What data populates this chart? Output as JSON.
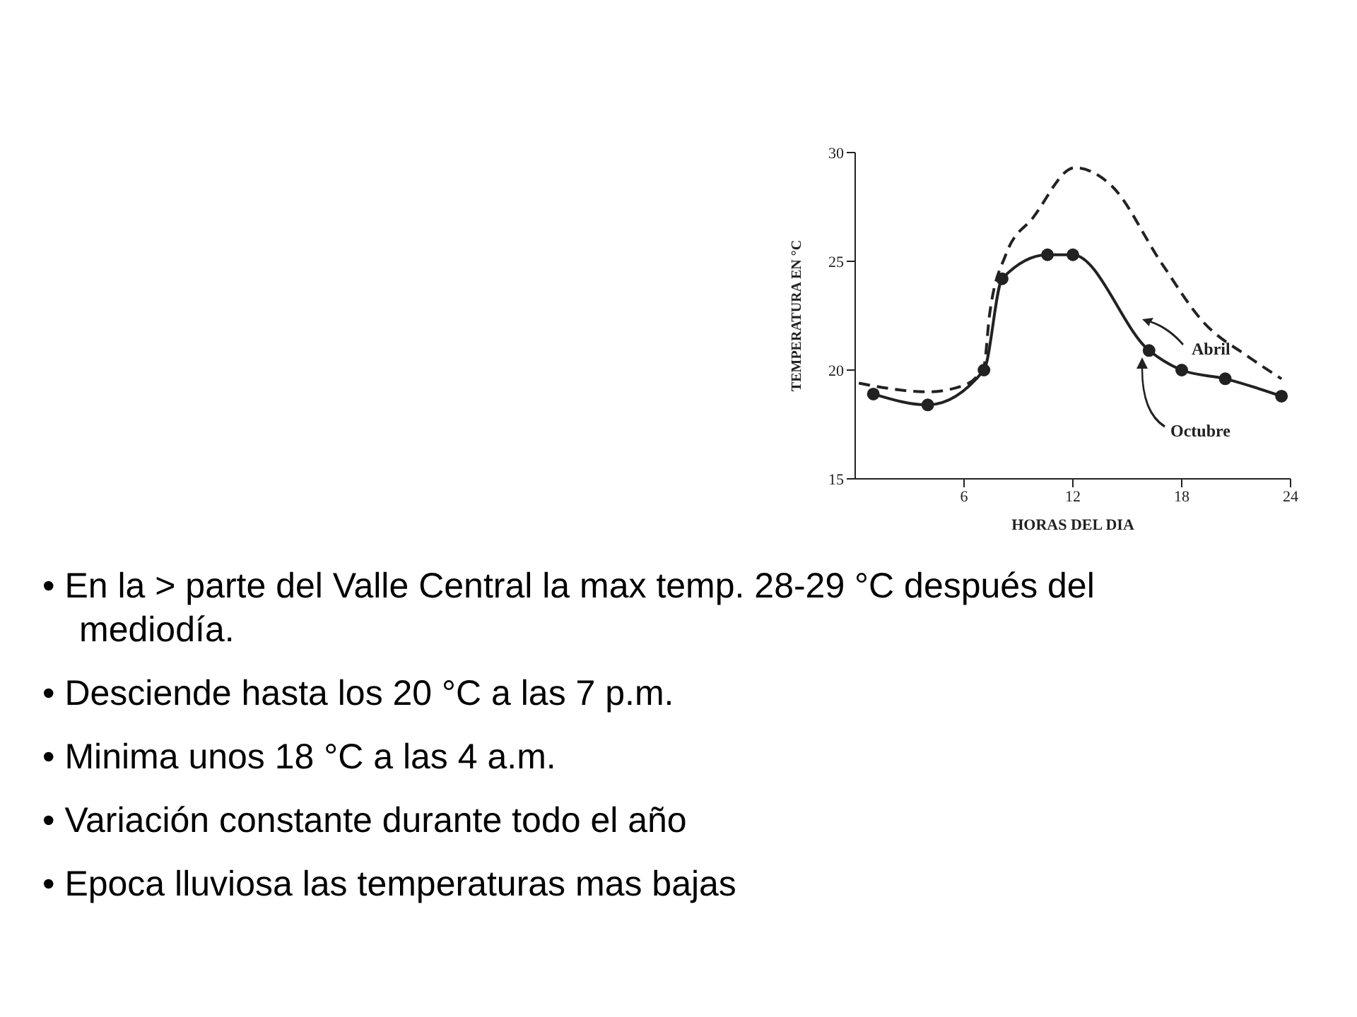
{
  "chart_data": {
    "type": "line",
    "xlabel": "HORAS DEL DIA",
    "ylabel": "TEMPERATURA EN °C",
    "xlim": [
      0,
      24
    ],
    "xticks": [
      6,
      12,
      18,
      24
    ],
    "ylim": [
      15,
      30
    ],
    "yticks": [
      15,
      20,
      25,
      30
    ],
    "grid": false,
    "legend": false,
    "series": [
      {
        "name": "Abril",
        "color": "#222222",
        "line_style": "dashed",
        "marker": "none",
        "x": [
          0.2,
          4,
          6,
          7.1,
          7.4,
          8.3,
          9.8,
          12.1,
          14.1,
          16.9,
          19.2,
          21.7,
          23.5
        ],
        "values": [
          19.4,
          19,
          19.3,
          20.2,
          22.5,
          25.3,
          27,
          29.3,
          28.5,
          24.9,
          22.2,
          20.6,
          19.6
        ]
      },
      {
        "name": "Octubre",
        "color": "#222222",
        "line_style": "solid",
        "marker": "circle",
        "x": [
          1,
          4,
          7.1,
          8.1,
          10.6,
          12,
          16.2,
          18,
          20.4,
          23.5
        ],
        "values": [
          18.9,
          18.4,
          20,
          24.2,
          25.3,
          25.3,
          20.9,
          20,
          19.6,
          18.8
        ]
      }
    ],
    "annotations": [
      "• En la > parte del Valle Central la max temp. 28-29 °C después del mediodía.",
      "• Desciende hasta los 20 °C a las 7 p.m.",
      "• Minima unos 18 °C a las 4 a.m.",
      "• Variación constante durante todo el año",
      "• Epoca lluviosa las temperaturas mas bajas"
    ]
  }
}
